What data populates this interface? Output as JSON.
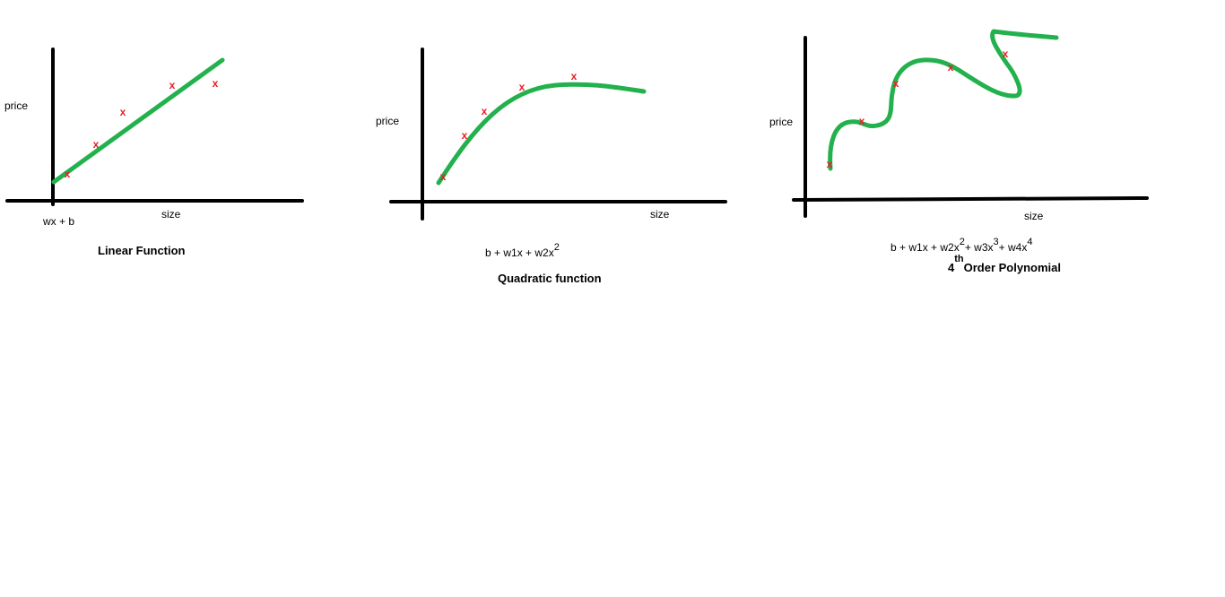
{
  "colors": {
    "curve": "#22b14c",
    "marker": "#ed1c24",
    "axis": "#000000"
  },
  "marker_glyph": "x",
  "panels": [
    {
      "ylabel": "price",
      "xlabel": "size",
      "origin_label": "wx + b",
      "caption": "Linear Function"
    },
    {
      "ylabel": "price",
      "xlabel": "size",
      "formula": {
        "parts": [
          "b + w1x + w2x",
          "2"
        ]
      },
      "caption": "Quadratic function"
    },
    {
      "ylabel": "price",
      "xlabel": "size",
      "formula": {
        "parts": [
          "b + w1x + w2x",
          "2",
          "+ w3x",
          "3",
          "+ w4x",
          "4"
        ]
      },
      "caption_sup": "th",
      "caption_prefix": "4",
      "caption": "Order Polynomial"
    }
  ]
}
